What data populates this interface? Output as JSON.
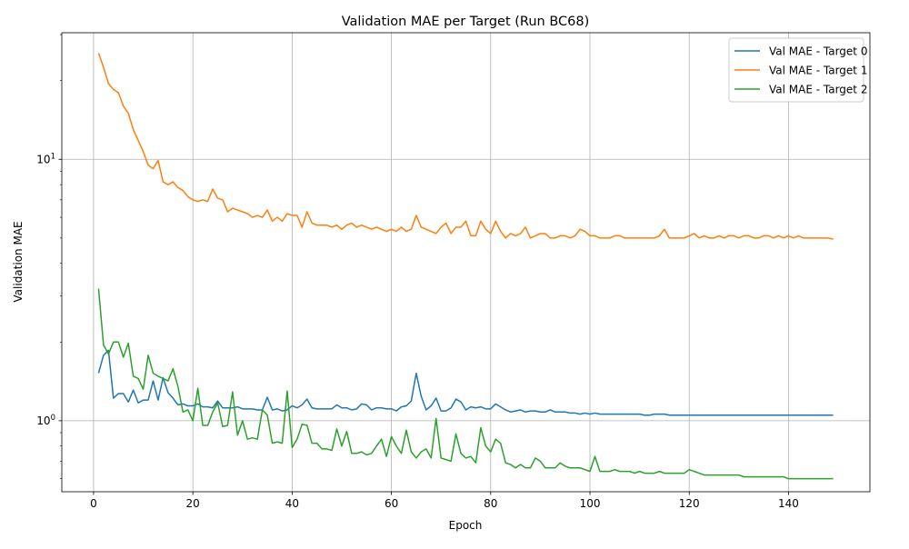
{
  "chart_data": {
    "type": "line",
    "title": "Validation MAE per Target (Run BC68)",
    "xlabel": "Epoch",
    "ylabel": "Validation MAE",
    "yscale": "log",
    "xlim": [
      -6.4,
      156.4
    ],
    "ylim": [
      0.535,
      30.5
    ],
    "x_ticks": [
      0,
      20,
      40,
      60,
      80,
      100,
      120,
      140
    ],
    "y_major_ticks": [
      {
        "value": 1,
        "label": "10^0",
        "base": "10",
        "exp": "0"
      },
      {
        "value": 10,
        "label": "10^1",
        "base": "10",
        "exp": "1"
      }
    ],
    "grid": true,
    "legend_position": "top-right",
    "colors": [
      "#1f77b4",
      "#ff7f0e",
      "#2ca02c"
    ],
    "x_start": 1,
    "series": [
      {
        "name": "Val MAE - Target 0",
        "color": "#1f77b4",
        "values": [
          1.52,
          1.78,
          1.86,
          1.22,
          1.27,
          1.27,
          1.18,
          1.31,
          1.17,
          1.2,
          1.2,
          1.42,
          1.2,
          1.46,
          1.28,
          1.22,
          1.15,
          1.16,
          1.14,
          1.14,
          1.16,
          1.13,
          1.13,
          1.12,
          1.19,
          1.12,
          1.12,
          1.12,
          1.13,
          1.11,
          1.11,
          1.11,
          1.1,
          1.1,
          1.23,
          1.1,
          1.11,
          1.09,
          1.1,
          1.14,
          1.12,
          1.15,
          1.21,
          1.12,
          1.11,
          1.11,
          1.11,
          1.11,
          1.15,
          1.12,
          1.12,
          1.1,
          1.11,
          1.16,
          1.15,
          1.1,
          1.12,
          1.12,
          1.11,
          1.11,
          1.09,
          1.13,
          1.14,
          1.19,
          1.52,
          1.24,
          1.1,
          1.14,
          1.22,
          1.09,
          1.09,
          1.12,
          1.21,
          1.18,
          1.1,
          1.13,
          1.12,
          1.13,
          1.11,
          1.11,
          1.16,
          1.13,
          1.1,
          1.08,
          1.09,
          1.1,
          1.08,
          1.09,
          1.09,
          1.08,
          1.08,
          1.1,
          1.08,
          1.08,
          1.08,
          1.07,
          1.07,
          1.06,
          1.07,
          1.06,
          1.07,
          1.06,
          1.06,
          1.06,
          1.06,
          1.06,
          1.06,
          1.06,
          1.06,
          1.06,
          1.05,
          1.05,
          1.06,
          1.06,
          1.06,
          1.05,
          1.05,
          1.05,
          1.05,
          1.05,
          1.05,
          1.05,
          1.05,
          1.05,
          1.05,
          1.05,
          1.05,
          1.05,
          1.05,
          1.05,
          1.05,
          1.05,
          1.05,
          1.05,
          1.05,
          1.05,
          1.05,
          1.05,
          1.05,
          1.05,
          1.05,
          1.05,
          1.05,
          1.05,
          1.05,
          1.05,
          1.05,
          1.05,
          1.05
        ]
      },
      {
        "name": "Val MAE - Target 1",
        "color": "#ff7f0e",
        "values": [
          25.5,
          22.5,
          19.5,
          18.5,
          18.0,
          16.0,
          15.0,
          13.0,
          11.8,
          10.7,
          9.5,
          9.2,
          9.9,
          8.2,
          8.0,
          8.2,
          7.8,
          7.6,
          7.2,
          7.0,
          6.9,
          7.0,
          6.9,
          7.7,
          7.1,
          7.0,
          6.3,
          6.5,
          6.4,
          6.3,
          6.2,
          6.0,
          6.1,
          6.0,
          6.4,
          5.8,
          6.0,
          5.8,
          6.2,
          6.1,
          6.1,
          5.5,
          6.3,
          5.7,
          5.6,
          5.6,
          5.6,
          5.5,
          5.6,
          5.4,
          5.6,
          5.7,
          5.5,
          5.6,
          5.5,
          5.4,
          5.5,
          5.4,
          5.3,
          5.4,
          5.3,
          5.5,
          5.3,
          5.4,
          6.1,
          5.5,
          5.4,
          5.3,
          5.2,
          5.5,
          5.7,
          5.2,
          5.5,
          5.5,
          5.8,
          5.1,
          5.1,
          5.8,
          5.4,
          5.2,
          5.8,
          5.3,
          5.0,
          5.2,
          5.1,
          5.2,
          5.5,
          5.0,
          5.1,
          5.2,
          5.2,
          5.0,
          5.0,
          5.1,
          5.1,
          5.0,
          5.1,
          5.4,
          5.3,
          5.1,
          5.1,
          5.0,
          5.0,
          5.0,
          5.1,
          5.1,
          5.0,
          5.0,
          5.0,
          5.0,
          5.0,
          5.0,
          5.0,
          5.1,
          5.4,
          5.0,
          5.0,
          5.0,
          5.0,
          5.1,
          5.2,
          5.0,
          5.1,
          5.0,
          5.0,
          5.1,
          5.0,
          5.1,
          5.1,
          5.0,
          5.1,
          5.1,
          5.0,
          5.0,
          5.1,
          5.1,
          5.0,
          5.1,
          5.0,
          5.1,
          5.0,
          5.1,
          5.0,
          5.0,
          5.0,
          5.0,
          5.0,
          5.0,
          4.95
        ]
      },
      {
        "name": "Val MAE - Target 2",
        "color": "#2ca02c",
        "values": [
          3.2,
          1.95,
          1.8,
          2.0,
          2.0,
          1.75,
          1.98,
          1.48,
          1.45,
          1.32,
          1.78,
          1.52,
          1.48,
          1.45,
          1.42,
          1.58,
          1.35,
          1.08,
          1.1,
          1.0,
          1.33,
          0.96,
          0.96,
          1.08,
          1.17,
          0.95,
          0.96,
          1.29,
          0.88,
          1.0,
          0.85,
          0.86,
          0.85,
          1.1,
          1.05,
          0.82,
          0.83,
          0.82,
          1.3,
          0.79,
          0.85,
          0.97,
          0.96,
          0.82,
          0.82,
          0.78,
          0.78,
          0.77,
          0.93,
          0.8,
          0.91,
          0.75,
          0.75,
          0.76,
          0.74,
          0.75,
          0.8,
          0.85,
          0.73,
          0.87,
          0.8,
          0.75,
          0.92,
          0.76,
          0.72,
          0.76,
          0.78,
          0.72,
          1.02,
          0.72,
          0.71,
          0.7,
          0.89,
          0.75,
          0.72,
          0.73,
          0.69,
          0.94,
          0.8,
          0.76,
          0.85,
          0.82,
          0.69,
          0.68,
          0.66,
          0.68,
          0.66,
          0.66,
          0.72,
          0.7,
          0.66,
          0.66,
          0.66,
          0.69,
          0.67,
          0.66,
          0.66,
          0.66,
          0.65,
          0.64,
          0.73,
          0.64,
          0.64,
          0.64,
          0.65,
          0.64,
          0.64,
          0.64,
          0.63,
          0.64,
          0.63,
          0.63,
          0.63,
          0.64,
          0.63,
          0.63,
          0.63,
          0.63,
          0.63,
          0.65,
          0.64,
          0.63,
          0.62,
          0.62,
          0.62,
          0.62,
          0.62,
          0.62,
          0.62,
          0.62,
          0.61,
          0.61,
          0.61,
          0.61,
          0.61,
          0.61,
          0.61,
          0.61,
          0.61,
          0.6,
          0.6,
          0.6,
          0.6,
          0.6,
          0.6,
          0.6,
          0.6,
          0.6,
          0.6
        ]
      }
    ]
  }
}
